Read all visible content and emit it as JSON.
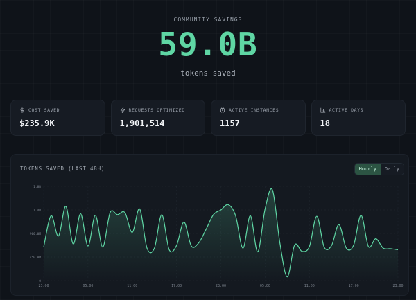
{
  "hero": {
    "label": "COMMUNITY SAVINGS",
    "value": "59.0B",
    "subtitle": "tokens saved"
  },
  "stats": [
    {
      "icon": "dollar-icon",
      "label": "COST SAVED",
      "value": "$235.9K"
    },
    {
      "icon": "lightning-icon",
      "label": "REQUESTS OPTIMIZED",
      "value": "1,901,514"
    },
    {
      "icon": "chip-icon",
      "label": "ACTIVE INSTANCES",
      "value": "1157"
    },
    {
      "icon": "bar-chart-icon",
      "label": "ACTIVE DAYS",
      "value": "18"
    }
  ],
  "chart_panel": {
    "title": "TOKENS SAVED (LAST 48H)",
    "toggle": {
      "options": [
        "Hourly",
        "Daily"
      ],
      "selected": "Hourly"
    }
  },
  "colors": {
    "accent": "#5fd6a4",
    "background": "#0f1319",
    "card": "#161b23"
  },
  "chart_data": {
    "type": "area",
    "title": "TOKENS SAVED (LAST 48H)",
    "xlabel": "",
    "ylabel": "",
    "grid": true,
    "legend": "none",
    "yticks": [
      {
        "value": 0,
        "label": "0"
      },
      {
        "value": 450,
        "label": "450.0M"
      },
      {
        "value": 900,
        "label": "900.0M"
      },
      {
        "value": 1350,
        "label": "1.4B"
      },
      {
        "value": 1800,
        "label": "1.8B"
      }
    ],
    "ylim": [
      0,
      1800
    ],
    "xticks": [
      {
        "index": 0,
        "label": "23:00"
      },
      {
        "index": 6,
        "label": "05:00"
      },
      {
        "index": 12,
        "label": "11:00"
      },
      {
        "index": 18,
        "label": "17:00"
      },
      {
        "index": 24,
        "label": "23:00"
      },
      {
        "index": 30,
        "label": "05:00"
      },
      {
        "index": 36,
        "label": "11:00"
      },
      {
        "index": 42,
        "label": "17:00"
      },
      {
        "index": 48,
        "label": "23:00"
      }
    ],
    "series": [
      {
        "values": [
          640,
          1240,
          850,
          1420,
          700,
          1280,
          660,
          1250,
          640,
          1300,
          1260,
          1300,
          920,
          1370,
          620,
          620,
          1260,
          590,
          670,
          1120,
          660,
          720,
          980,
          1260,
          1350,
          1450,
          1240,
          620,
          1240,
          550,
          1370,
          1730,
          720,
          70,
          680,
          560,
          650,
          1230,
          640,
          670,
          1070,
          620,
          680,
          1250,
          650,
          800,
          620,
          610,
          590
        ]
      }
    ]
  }
}
